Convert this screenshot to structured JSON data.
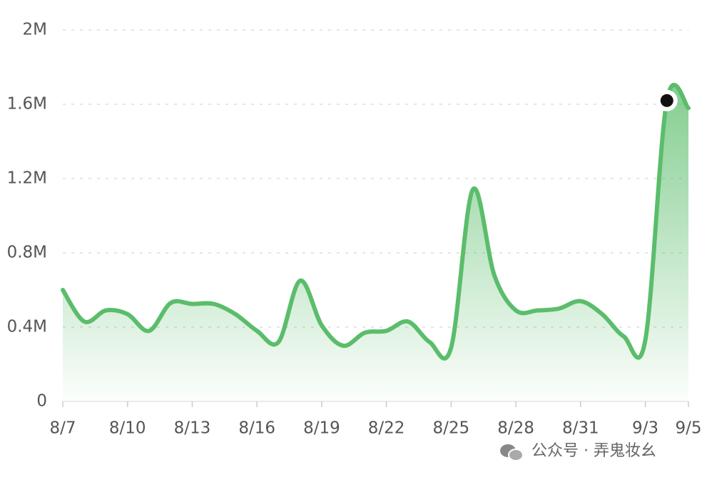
{
  "chart_data": {
    "type": "area",
    "categories": [
      "8/7",
      null,
      null,
      "8/10",
      null,
      null,
      "8/13",
      null,
      null,
      "8/16",
      null,
      null,
      "8/19",
      null,
      null,
      "8/22",
      null,
      null,
      "8/25",
      null,
      null,
      "8/28",
      null,
      null,
      "8/31",
      null,
      null,
      "9/3",
      null,
      "9/5"
    ],
    "values": [
      600000,
      430000,
      490000,
      470000,
      380000,
      530000,
      525000,
      525000,
      470000,
      380000,
      320000,
      650000,
      410000,
      300000,
      370000,
      380000,
      430000,
      320000,
      290000,
      1140000,
      680000,
      490000,
      490000,
      500000,
      540000,
      470000,
      350000,
      330000,
      1620000,
      1580000
    ],
    "color": "#5bbd6b",
    "ylim": [
      0,
      2000000
    ],
    "yticks": [
      0,
      {
        "value": 400000,
        "label": "0.4M"
      },
      {
        "value": 800000,
        "label": "0.8M"
      },
      {
        "value": 1200000,
        "label": "1.2M"
      },
      {
        "value": 1600000,
        "label": "1.6M"
      },
      {
        "value": 2000000,
        "label": "2M"
      }
    ],
    "grid": true,
    "watermark": "公众号 · 弄鬼妆幺"
  }
}
